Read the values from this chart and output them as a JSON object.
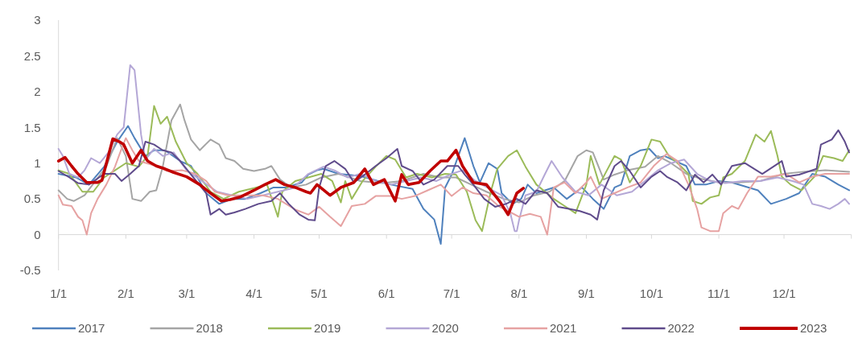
{
  "chart_data": {
    "type": "line",
    "xlim": [
      "--01-01",
      "--12-31"
    ],
    "xticks": [
      {
        "value": "--01-01",
        "label": "1/1"
      },
      {
        "value": "--02-01",
        "label": "2/1"
      },
      {
        "value": "--03-01",
        "label": "3/1"
      },
      {
        "value": "--04-01",
        "label": "4/1"
      },
      {
        "value": "--05-01",
        "label": "5/1"
      },
      {
        "value": "--06-01",
        "label": "6/1"
      },
      {
        "value": "--07-01",
        "label": "7/1"
      },
      {
        "value": "--08-01",
        "label": "8/1"
      },
      {
        "value": "--09-01",
        "label": "9/1"
      },
      {
        "value": "--10-01",
        "label": "10/1"
      },
      {
        "value": "--11-01",
        "label": "11/1"
      },
      {
        "value": "--12-01",
        "label": "12/1"
      },
      {
        "value": "--12-31",
        "label": null
      }
    ],
    "ylim": [
      -0.5,
      3
    ],
    "yticks": [
      -0.5,
      0,
      0.5,
      1,
      1.5,
      2,
      2.5,
      3
    ],
    "legend": "bottom",
    "series": [
      {
        "name": "2017",
        "color": "#4f81bd",
        "x": [
          "--01-01",
          "--01-09",
          "--01-15",
          "--01-22",
          "--01-28",
          "--02-02",
          "--02-05",
          "--02-10",
          "--02-14",
          "--02-19",
          "--02-26",
          "--03-03",
          "--03-10",
          "--03-16",
          "--03-22",
          "--03-28",
          "--04-04",
          "--04-10",
          "--04-16",
          "--04-23",
          "--04-26",
          "--04-30",
          "--05-03",
          "--05-10",
          "--05-20",
          "--06-03",
          "--06-13",
          "--06-18",
          "--06-23",
          "--06-26",
          "--06-28",
          "--07-01",
          "--07-07",
          "--07-11",
          "--07-14",
          "--07-18",
          "--07-22",
          "--07-24",
          "--07-29",
          "--08-02",
          "--08-05",
          "--08-09",
          "--08-17",
          "--08-23",
          "--08-30",
          "--09-04",
          "--09-09",
          "--09-14",
          "--09-17",
          "--09-21",
          "--09-26",
          "--09-30",
          "--10-04",
          "--10-07",
          "--10-12",
          "--10-17",
          "--10-21",
          "--10-26",
          "--11-01",
          "--11-07",
          "--11-19",
          "--11-25",
          "--12-02",
          "--12-08",
          "--12-14",
          "--12-20",
          "--12-26",
          "--12-31"
        ],
        "values": [
          0.85,
          0.8,
          0.7,
          0.95,
          1.3,
          1.52,
          1.35,
          1.1,
          1.18,
          1.18,
          1.03,
          0.96,
          0.58,
          0.43,
          0.5,
          0.5,
          0.58,
          0.66,
          0.66,
          0.73,
          0.84,
          0.9,
          0.92,
          0.85,
          0.82,
          0.7,
          0.64,
          0.36,
          0.21,
          -0.13,
          0.66,
          0.84,
          1.35,
          0.96,
          0.73,
          1.0,
          0.92,
          0.58,
          0.43,
          0.5,
          0.7,
          0.58,
          0.66,
          0.5,
          0.66,
          0.5,
          0.36,
          0.66,
          0.7,
          1.1,
          1.18,
          1.2,
          1.07,
          1.1,
          1.03,
          0.96,
          0.7,
          0.7,
          0.75,
          0.73,
          0.62,
          0.43,
          0.5,
          0.58,
          0.85,
          0.81,
          0.7,
          0.62
        ]
      },
      {
        "name": "2018",
        "color": "#a5a5a5",
        "x": [
          "--01-01",
          "--01-05",
          "--01-08",
          "--01-13",
          "--01-18",
          "--01-23",
          "--01-28",
          "--02-01",
          "--02-04",
          "--02-08",
          "--02-12",
          "--02-15",
          "--02-18",
          "--02-22",
          "--02-26",
          "--02-28",
          "--03-03",
          "--03-07",
          "--03-12",
          "--03-16",
          "--03-19",
          "--03-23",
          "--03-27",
          "--04-01",
          "--04-06",
          "--04-09",
          "--04-13",
          "--04-18",
          "--04-25",
          "--05-02",
          "--05-10",
          "--05-20",
          "--05-30",
          "--06-08",
          "--06-18",
          "--06-26",
          "--07-03",
          "--07-10",
          "--07-17",
          "--07-25",
          "--08-01",
          "--08-08",
          "--08-15",
          "--08-22",
          "--08-28",
          "--09-01",
          "--09-04",
          "--09-09",
          "--09-14",
          "--09-20",
          "--09-28",
          "--10-04",
          "--10-10",
          "--10-17",
          "--10-24",
          "--11-01",
          "--11-10",
          "--11-20",
          "--12-01",
          "--12-10",
          "--12-20",
          "--12-31"
        ],
        "values": [
          0.62,
          0.5,
          0.47,
          0.55,
          0.75,
          0.95,
          1.35,
          1.1,
          0.5,
          0.47,
          0.6,
          0.62,
          0.95,
          1.6,
          1.82,
          1.6,
          1.33,
          1.18,
          1.33,
          1.26,
          1.07,
          1.03,
          0.92,
          0.89,
          0.92,
          0.96,
          0.77,
          0.66,
          0.7,
          0.8,
          0.85,
          0.75,
          0.72,
          0.75,
          0.85,
          0.8,
          0.8,
          0.7,
          0.6,
          0.5,
          0.45,
          0.55,
          0.6,
          0.75,
          1.1,
          1.18,
          1.15,
          0.77,
          0.84,
          0.9,
          0.95,
          1.1,
          1.0,
          0.85,
          0.78,
          0.73,
          0.73,
          0.75,
          0.85,
          0.88,
          0.9,
          0.88
        ]
      },
      {
        "name": "2019",
        "color": "#9bbb59",
        "x": [
          "--01-01",
          "--01-06",
          "--01-12",
          "--01-17",
          "--01-22",
          "--01-27",
          "--02-01",
          "--02-07",
          "--02-11",
          "--02-14",
          "--02-17",
          "--02-20",
          "--02-24",
          "--03-01",
          "--03-06",
          "--03-12",
          "--03-18",
          "--03-25",
          "--04-01",
          "--04-07",
          "--04-12",
          "--04-14",
          "--04-20",
          "--04-26",
          "--05-02",
          "--05-07",
          "--05-11",
          "--05-13",
          "--05-16",
          "--05-21",
          "--05-27",
          "--06-01",
          "--06-05",
          "--06-10",
          "--06-15",
          "--06-22",
          "--06-28",
          "--07-03",
          "--07-08",
          "--07-12",
          "--07-15",
          "--07-19",
          "--07-22",
          "--07-27",
          "--07-31",
          "--08-04",
          "--08-09",
          "--08-17",
          "--08-22",
          "--08-27",
          "--09-01",
          "--09-03",
          "--09-07",
          "--09-14",
          "--09-17",
          "--09-21",
          "--09-26",
          "--10-01",
          "--10-05",
          "--10-09",
          "--10-13",
          "--10-18",
          "--10-20",
          "--10-24",
          "--10-28",
          "--11-01",
          "--11-03",
          "--11-07",
          "--11-13",
          "--11-18",
          "--11-22",
          "--11-25",
          "--11-28",
          "--11-30",
          "--12-04",
          "--12-09",
          "--12-15",
          "--12-19",
          "--12-24",
          "--12-28",
          "--12-31"
        ],
        "values": [
          0.9,
          0.85,
          0.6,
          0.6,
          0.8,
          0.9,
          1.0,
          0.95,
          1.1,
          1.8,
          1.55,
          1.65,
          1.3,
          1.0,
          0.85,
          0.6,
          0.5,
          0.6,
          0.65,
          0.7,
          0.25,
          0.6,
          0.75,
          0.8,
          0.85,
          0.75,
          0.45,
          0.75,
          0.5,
          0.75,
          0.95,
          1.1,
          1.05,
          0.8,
          0.85,
          0.8,
          0.85,
          0.84,
          0.6,
          0.2,
          0.05,
          0.6,
          0.92,
          1.1,
          1.18,
          0.95,
          0.7,
          0.5,
          0.4,
          0.3,
          0.7,
          1.1,
          0.7,
          1.1,
          1.05,
          0.73,
          0.96,
          1.33,
          1.3,
          1.1,
          1.0,
          0.85,
          0.47,
          0.43,
          0.52,
          0.55,
          0.8,
          0.85,
          1.03,
          1.4,
          1.3,
          1.45,
          1.1,
          0.81,
          0.7,
          0.62,
          0.81,
          1.1,
          1.07,
          1.03,
          1.18
        ]
      },
      {
        "name": "2020",
        "color": "#b4a7d6",
        "x": [
          "--01-01",
          "--01-03",
          "--01-06",
          "--01-10",
          "--01-13",
          "--01-16",
          "--01-20",
          "--01-24",
          "--01-28",
          "--01-31",
          "--02-03",
          "--02-05",
          "--02-08",
          "--02-10",
          "--02-14",
          "--02-18",
          "--02-23",
          "--03-01",
          "--03-08",
          "--03-15",
          "--03-22",
          "--03-29",
          "--04-05",
          "--04-12",
          "--04-19",
          "--04-26",
          "--05-03",
          "--05-08",
          "--05-14",
          "--05-20",
          "--05-27",
          "--06-03",
          "--06-10",
          "--06-17",
          "--06-24",
          "--07-01",
          "--07-06",
          "--07-12",
          "--07-18",
          "--07-24",
          "--07-28",
          "--07-30",
          "--07-31",
          "--08-01",
          "--08-04",
          "--08-09",
          "--08-13",
          "--08-16",
          "--08-21",
          "--08-27",
          "--09-02",
          "--09-08",
          "--09-15",
          "--09-22",
          "--09-28",
          "--10-04",
          "--10-10",
          "--10-16",
          "--10-22",
          "--10-28",
          "--11-04",
          "--11-12",
          "--11-20",
          "--11-28",
          "--12-05",
          "--12-10",
          "--12-14",
          "--12-18",
          "--12-22",
          "--12-26",
          "--12-29",
          "--12-31"
        ],
        "values": [
          1.2,
          1.1,
          0.85,
          0.8,
          0.9,
          1.07,
          1.0,
          1.15,
          1.4,
          1.5,
          2.37,
          2.3,
          1.4,
          1.05,
          1.2,
          1.1,
          1.15,
          0.9,
          0.75,
          0.6,
          0.55,
          0.5,
          0.55,
          0.6,
          0.65,
          0.85,
          0.95,
          0.9,
          0.8,
          0.85,
          0.75,
          0.7,
          0.75,
          0.8,
          0.75,
          0.85,
          0.9,
          0.75,
          0.65,
          0.55,
          0.3,
          0.05,
          0.05,
          0.2,
          0.55,
          0.6,
          0.85,
          1.03,
          0.8,
          0.6,
          0.55,
          0.7,
          0.55,
          0.6,
          0.75,
          0.9,
          1.0,
          1.05,
          0.85,
          0.75,
          0.72,
          0.75,
          0.75,
          0.8,
          0.75,
          0.7,
          0.43,
          0.4,
          0.36,
          0.43,
          0.5,
          0.43
        ]
      },
      {
        "name": "2021",
        "color": "#e6a2a2",
        "x": [
          "--01-01",
          "--01-03",
          "--01-07",
          "--01-10",
          "--01-12",
          "--01-14",
          "--01-16",
          "--01-19",
          "--01-23",
          "--01-27",
          "--01-30",
          "--02-01",
          "--02-04",
          "--02-07",
          "--02-15",
          "--02-20",
          "--02-27",
          "--03-05",
          "--03-10",
          "--03-14",
          "--03-20",
          "--03-28",
          "--04-05",
          "--04-12",
          "--04-20",
          "--04-26",
          "--05-01",
          "--05-06",
          "--05-11",
          "--05-16",
          "--05-22",
          "--05-27",
          "--06-03",
          "--06-08",
          "--06-14",
          "--06-20",
          "--06-26",
          "--07-01",
          "--07-06",
          "--07-11",
          "--07-17",
          "--07-23",
          "--07-27",
          "--08-01",
          "--08-06",
          "--08-11",
          "--08-14",
          "--08-17",
          "--08-22",
          "--08-27",
          "--09-01",
          "--09-03",
          "--09-08",
          "--09-14",
          "--09-20",
          "--09-26",
          "--10-02",
          "--10-08",
          "--10-13",
          "--10-18",
          "--10-22",
          "--10-24",
          "--10-28",
          "--11-01",
          "--11-03",
          "--11-07",
          "--11-10",
          "--11-14",
          "--11-19",
          "--11-25",
          "--12-02",
          "--12-08",
          "--12-14",
          "--12-20",
          "--12-26",
          "--12-31"
        ],
        "values": [
          0.55,
          0.42,
          0.4,
          0.25,
          0.2,
          0.0,
          0.3,
          0.5,
          0.7,
          0.95,
          1.2,
          1.35,
          1.18,
          1.03,
          0.96,
          0.89,
          0.9,
          0.85,
          0.75,
          0.6,
          0.55,
          0.55,
          0.55,
          0.5,
          0.35,
          0.28,
          0.39,
          0.25,
          0.12,
          0.4,
          0.43,
          0.54,
          0.54,
          0.5,
          0.54,
          0.62,
          0.7,
          0.54,
          0.66,
          0.58,
          0.55,
          0.39,
          0.33,
          0.25,
          0.29,
          0.25,
          0.0,
          0.66,
          0.73,
          0.58,
          0.73,
          0.81,
          0.5,
          0.58,
          0.66,
          0.73,
          0.96,
          1.13,
          1.03,
          0.7,
          0.36,
          0.1,
          0.05,
          0.05,
          0.3,
          0.4,
          0.36,
          0.58,
          0.81,
          0.81,
          0.85,
          0.73,
          0.81,
          0.85,
          0.85,
          0.85
        ]
      },
      {
        "name": "2022",
        "color": "#5f4b8b",
        "x": [
          "--01-01",
          "--01-06",
          "--01-10",
          "--01-15",
          "--01-22",
          "--01-27",
          "--01-30",
          "--02-03",
          "--02-07",
          "--02-10",
          "--02-14",
          "--02-18",
          "--02-22",
          "--02-26",
          "--03-03",
          "--03-10",
          "--03-12",
          "--03-16",
          "--03-19",
          "--03-23",
          "--03-28",
          "--04-03",
          "--04-09",
          "--04-13",
          "--04-17",
          "--04-22",
          "--04-26",
          "--04-29",
          "--05-01",
          "--05-04",
          "--05-08",
          "--05-13",
          "--05-17",
          "--05-22",
          "--05-27",
          "--06-01",
          "--06-06",
          "--06-08",
          "--06-13",
          "--06-18",
          "--06-23",
          "--06-29",
          "--07-04",
          "--07-07",
          "--07-11",
          "--07-16",
          "--07-21",
          "--07-26",
          "--07-31",
          "--08-04",
          "--08-09",
          "--08-14",
          "--08-19",
          "--08-24",
          "--08-29",
          "--09-03",
          "--09-06",
          "--09-09",
          "--09-14",
          "--09-17",
          "--09-21",
          "--09-26",
          "--10-01",
          "--10-05",
          "--10-08",
          "--10-13",
          "--10-17",
          "--10-21",
          "--10-25",
          "--10-29",
          "--11-02",
          "--11-07",
          "--11-13",
          "--11-21",
          "--11-30",
          "--12-02",
          "--12-08",
          "--12-16",
          "--12-18",
          "--12-23",
          "--12-26",
          "--12-29",
          "--12-31"
        ],
        "values": [
          0.89,
          0.8,
          0.72,
          0.7,
          0.85,
          0.85,
          0.75,
          0.85,
          0.96,
          1.3,
          1.26,
          1.18,
          1.15,
          1.03,
          0.84,
          0.58,
          0.28,
          0.36,
          0.28,
          0.31,
          0.36,
          0.43,
          0.47,
          0.58,
          0.43,
          0.28,
          0.21,
          0.2,
          0.66,
          0.96,
          1.03,
          0.92,
          0.73,
          0.84,
          0.96,
          1.07,
          1.2,
          0.96,
          0.89,
          0.7,
          0.77,
          0.96,
          0.96,
          0.84,
          0.7,
          0.5,
          0.39,
          0.43,
          0.5,
          0.43,
          0.62,
          0.58,
          0.39,
          0.36,
          0.33,
          0.28,
          0.21,
          0.62,
          0.96,
          1.03,
          0.89,
          0.66,
          0.81,
          0.89,
          0.81,
          0.73,
          0.62,
          0.84,
          0.73,
          0.84,
          0.7,
          0.96,
          1.0,
          0.85,
          1.03,
          0.81,
          0.84,
          0.92,
          1.26,
          1.33,
          1.46,
          1.3,
          1.15
        ]
      },
      {
        "name": "2023",
        "color": "#c00000",
        "x": [
          "--01-01",
          "--01-04",
          "--01-07",
          "--01-10",
          "--01-14",
          "--01-19",
          "--01-21",
          "--01-26",
          "--01-29",
          "--01-31",
          "--02-04",
          "--02-08",
          "--02-11",
          "--02-15",
          "--02-19",
          "--02-23",
          "--03-01",
          "--03-07",
          "--03-12",
          "--03-17",
          "--03-21",
          "--03-26",
          "--04-01",
          "--04-06",
          "--04-11",
          "--04-15",
          "--04-20",
          "--04-25",
          "--04-27",
          "--04-30",
          "--05-06",
          "--05-11",
          "--05-17",
          "--05-22",
          "--05-26",
          "--05-31",
          "--06-05",
          "--06-08",
          "--06-11",
          "--06-16",
          "--06-21",
          "--06-26",
          "--06-29",
          "--07-03",
          "--07-06",
          "--07-11",
          "--07-17",
          "--07-23",
          "--07-27",
          "--07-31",
          "--08-03"
        ],
        "values": [
          1.03,
          1.08,
          0.96,
          0.85,
          0.73,
          0.73,
          0.76,
          1.34,
          1.3,
          1.26,
          1.0,
          1.18,
          1.03,
          0.96,
          0.92,
          0.87,
          0.81,
          0.7,
          0.58,
          0.47,
          0.49,
          0.53,
          0.62,
          0.7,
          0.77,
          0.7,
          0.66,
          0.6,
          0.58,
          0.7,
          0.55,
          0.66,
          0.73,
          0.92,
          0.7,
          0.77,
          0.47,
          0.84,
          0.7,
          0.73,
          0.89,
          1.03,
          1.03,
          1.18,
          0.96,
          0.73,
          0.7,
          0.47,
          0.28,
          0.58,
          0.65
        ]
      }
    ]
  }
}
